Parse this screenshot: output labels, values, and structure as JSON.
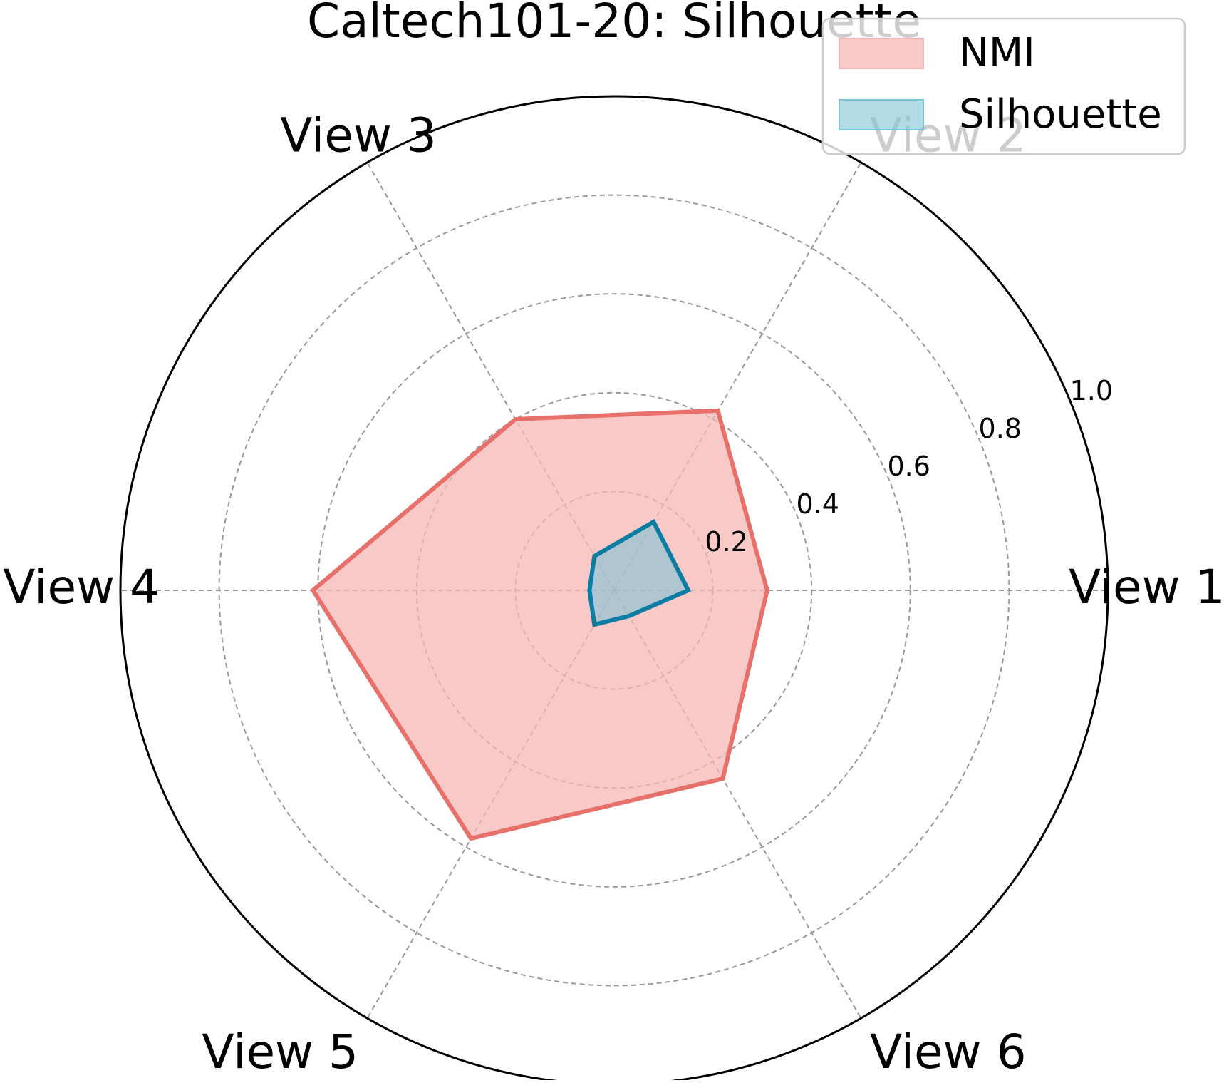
{
  "chart_data": {
    "type": "radar",
    "title": "Caltech101-20: Silhouette",
    "categories": [
      "View 1",
      "View 2",
      "View 3",
      "View 4",
      "View 5",
      "View 6"
    ],
    "radial_ticks": [
      "0.2",
      "0.4",
      "0.6",
      "0.8",
      "1.0"
    ],
    "radial_tick_values": [
      0.2,
      0.4,
      0.6,
      0.8,
      1.0
    ],
    "rlim": [
      0,
      1.0
    ],
    "grid": true,
    "legend_position": "top-right",
    "series": [
      {
        "name": "NMI",
        "values": [
          0.31,
          0.42,
          0.4,
          0.61,
          0.58,
          0.44
        ],
        "line_color": "#e8706a",
        "fill_color": "#f5b7b4"
      },
      {
        "name": "Silhouette",
        "values": [
          0.15,
          0.16,
          0.08,
          0.05,
          0.08,
          0.06
        ],
        "line_color": "#0b7ca3",
        "fill_color": "#7fc3d6"
      }
    ]
  }
}
